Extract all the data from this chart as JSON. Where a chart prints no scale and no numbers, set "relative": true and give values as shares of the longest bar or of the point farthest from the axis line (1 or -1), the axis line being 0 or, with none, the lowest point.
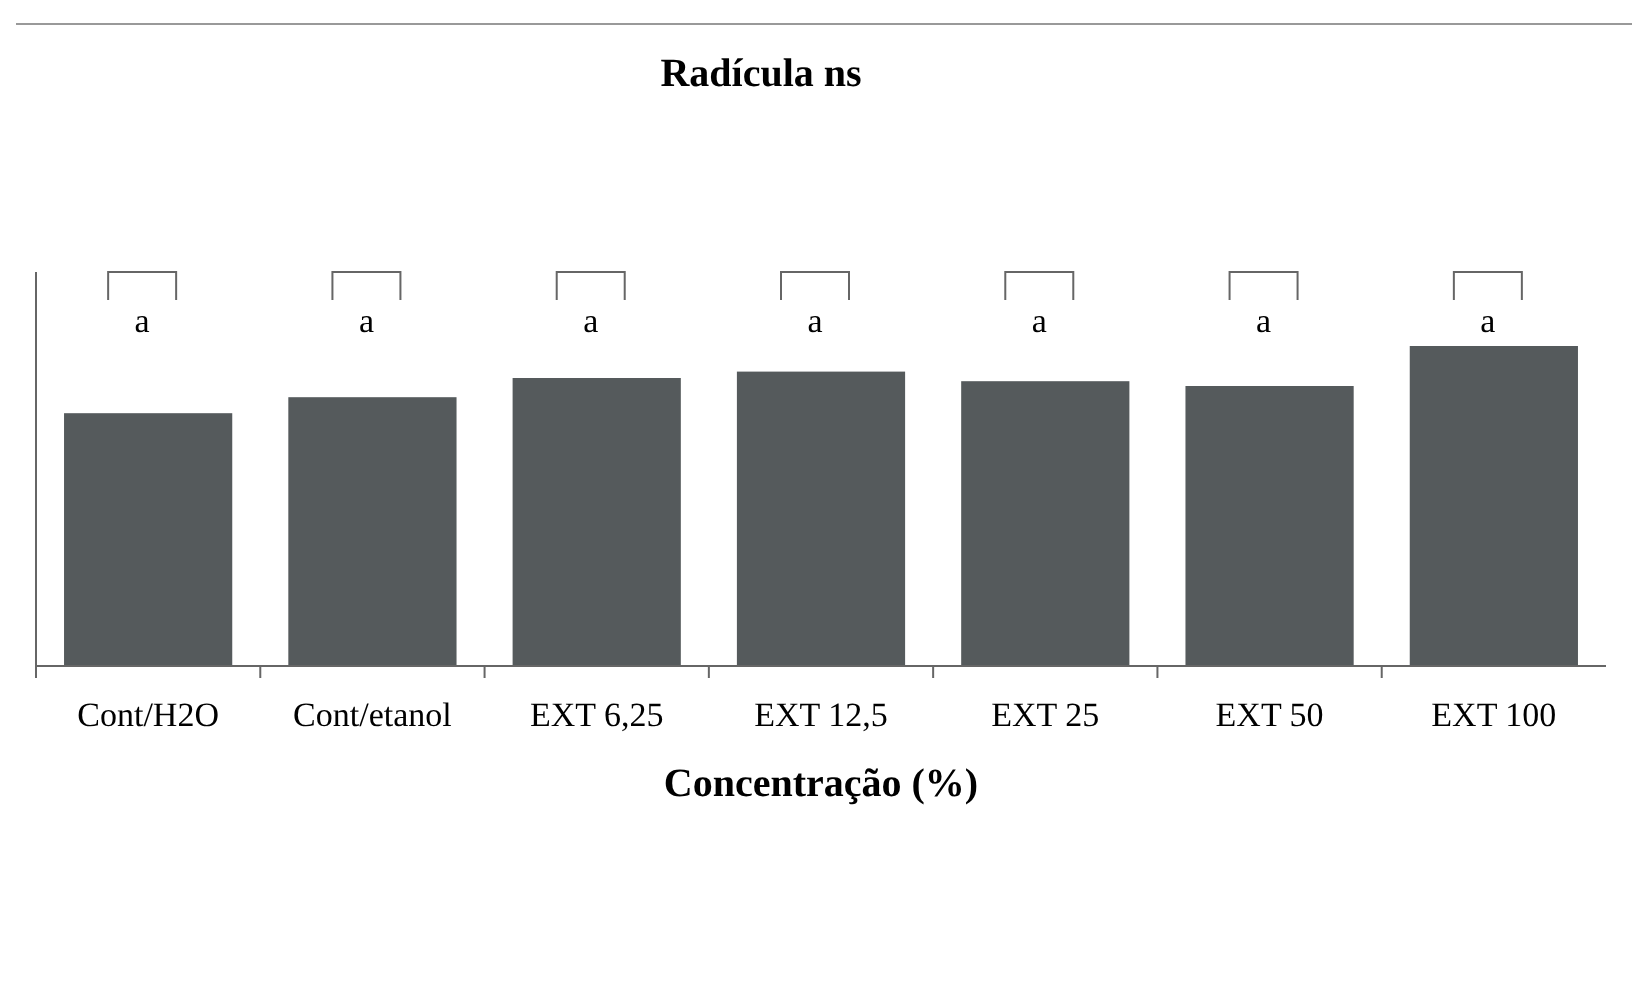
{
  "chart_data": {
    "type": "bar",
    "title": "Radícula ns",
    "xlabel": "Concentração (%)",
    "relative": true,
    "categories": [
      "Cont/H2O",
      "Cont/etanol",
      "EXT 6,25",
      "EXT 12,5",
      "EXT 25",
      "EXT 50",
      "EXT 100"
    ],
    "values": [
      0.79,
      0.84,
      0.9,
      0.92,
      0.89,
      0.875,
      1
    ],
    "color": "#555a5c",
    "annotations": [
      "a",
      "a",
      "a",
      "a",
      "a",
      "a",
      "a"
    ]
  }
}
